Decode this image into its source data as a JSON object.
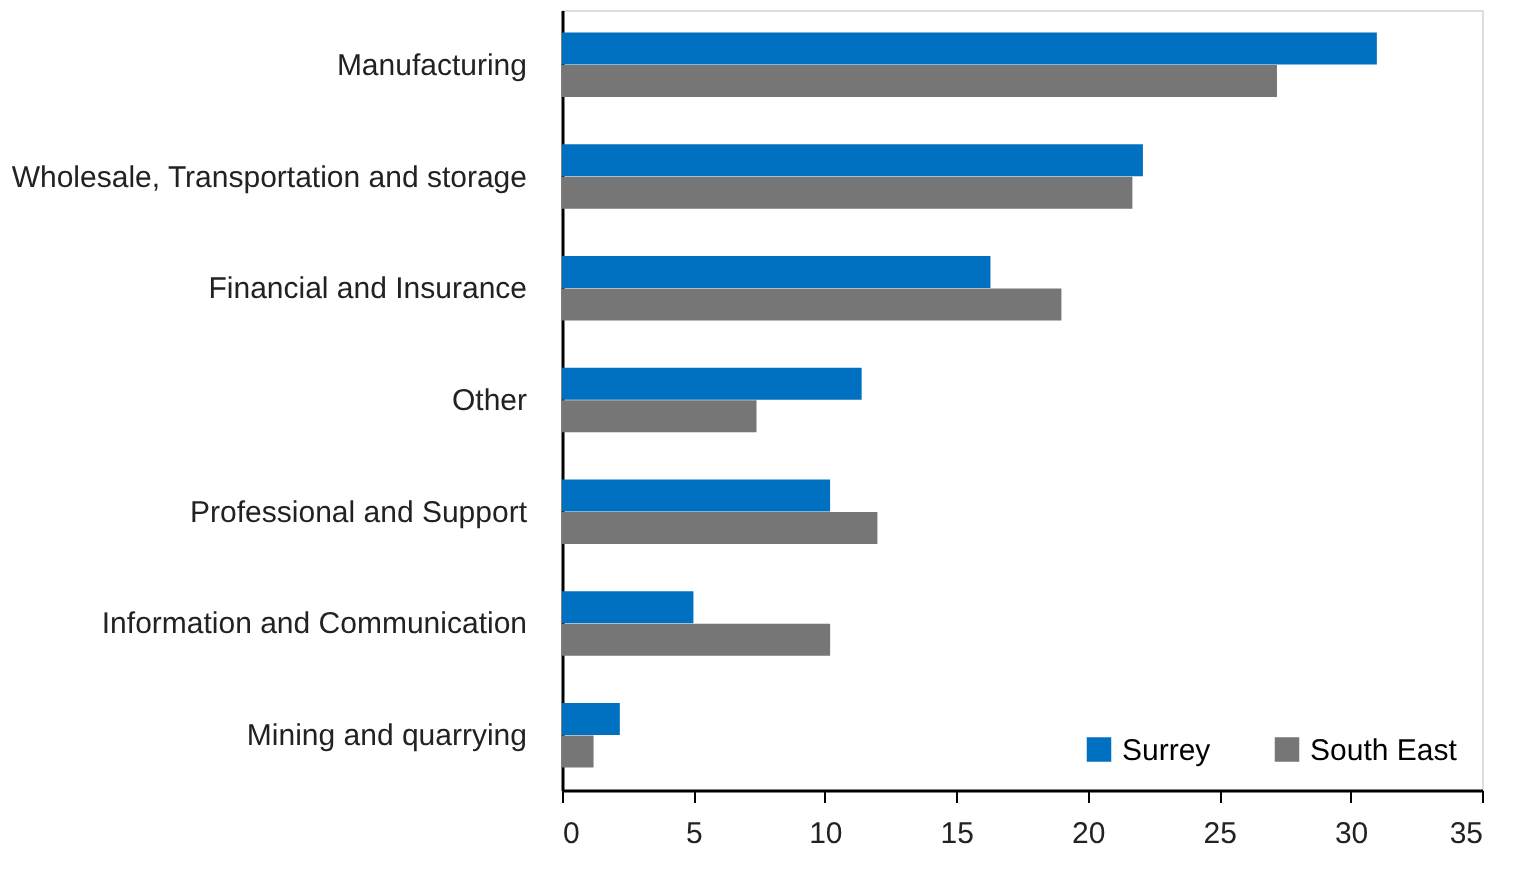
{
  "chart_data": {
    "type": "bar",
    "orientation": "horizontal",
    "categories": [
      "Manufacturing",
      "Wholesale, Transportation and storage",
      "Financial and Insurance",
      "Other",
      "Professional and Support",
      "Information and Communication",
      "Mining and quarrying"
    ],
    "series": [
      {
        "name": "Surrey",
        "color": "#0070c0",
        "values": [
          31.0,
          22.1,
          16.3,
          11.4,
          10.2,
          5.0,
          2.2
        ]
      },
      {
        "name": "South East",
        "color": "#767676",
        "values": [
          27.2,
          21.7,
          19.0,
          7.4,
          12.0,
          10.2,
          1.2
        ]
      }
    ],
    "xlim": [
      0,
      35
    ],
    "xticks": [
      0,
      5,
      10,
      15,
      20,
      25,
      30,
      35
    ],
    "grid": false,
    "legend": "bottom right"
  }
}
